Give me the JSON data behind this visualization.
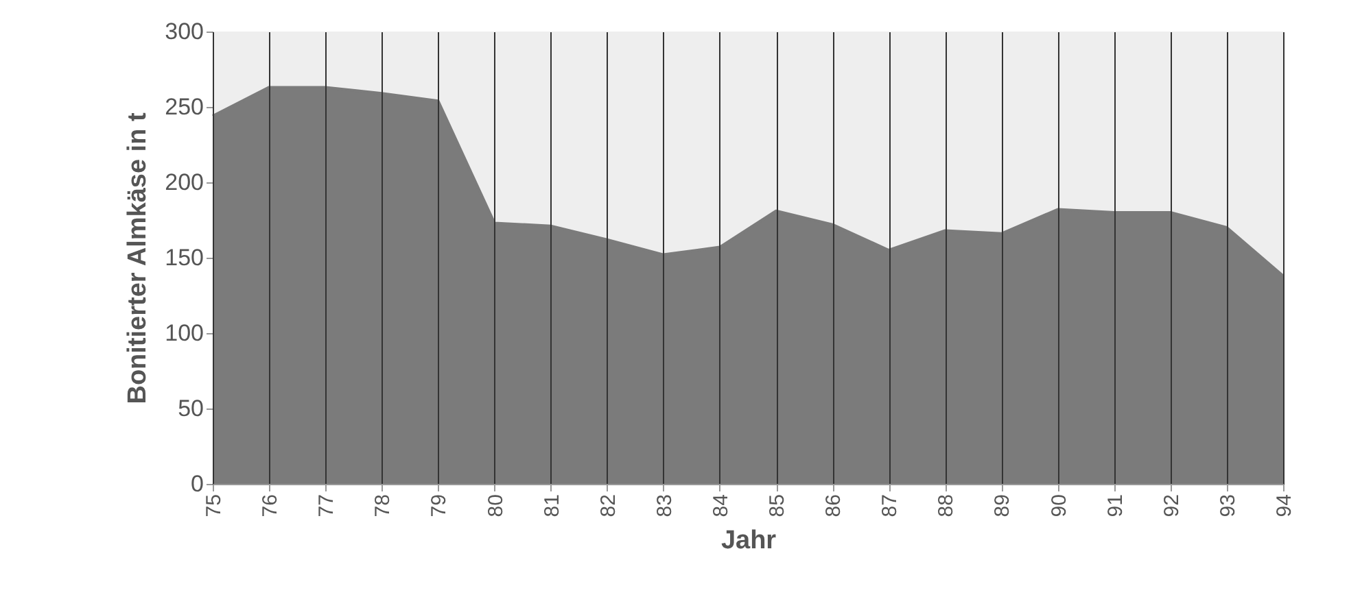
{
  "chart_data": {
    "type": "area",
    "xlabel": "Jahr",
    "ylabel": "Bonitierter Almkäse in t",
    "categories": [
      "75",
      "76",
      "77",
      "78",
      "79",
      "80",
      "81",
      "82",
      "83",
      "84",
      "85",
      "86",
      "87",
      "88",
      "89",
      "90",
      "91",
      "92",
      "93",
      "94"
    ],
    "series": [
      {
        "color": "#7b7b7b",
        "values": [
          244,
          263,
          263,
          259,
          254,
          173,
          171,
          162,
          152,
          157,
          181,
          172,
          155,
          168,
          166,
          182,
          180,
          180,
          170,
          138
        ]
      }
    ],
    "ylim": [
      0,
      300
    ],
    "yticks": [
      0,
      50,
      100,
      150,
      200,
      250,
      300
    ],
    "grid": "x"
  }
}
